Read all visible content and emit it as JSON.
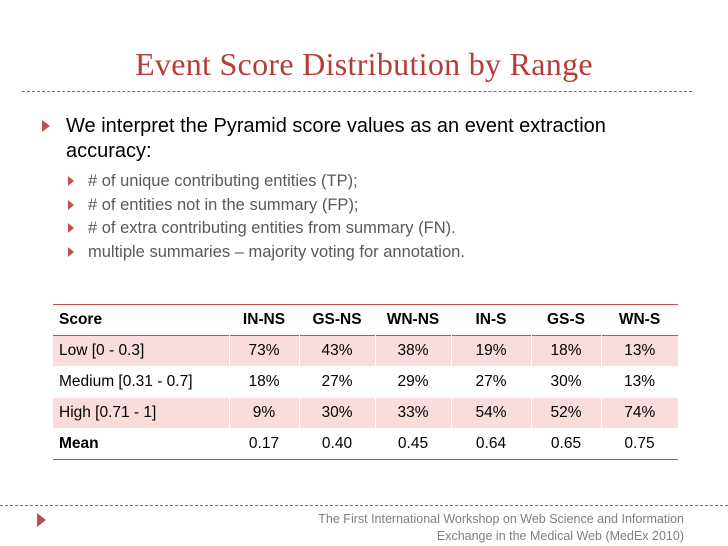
{
  "slide": {
    "title": "Event Score Distribution by Range",
    "main_bullet": "We interpret the Pyramid score values as an event extraction accuracy:",
    "sub_bullets": [
      "# of unique contributing entities (TP);",
      "# of entities not in the summary (FP);",
      "# of extra contributing entities from summary (FN).",
      "multiple summaries – majority voting for annotation."
    ],
    "footer_line1": "The First International Workshop on Web Science and Information",
    "footer_line2": "Exchange in the Medical Web (MedEx  2010)",
    "accent_color": "#c0504d",
    "row_shade_color": "#f9dcdb",
    "bullet_icon": "triangle-right-icon"
  },
  "table": {
    "headers": [
      "Score",
      "IN-NS",
      "GS-NS",
      "WN-NS",
      "IN-S",
      "GS-S",
      "WN-S"
    ],
    "rows": [
      [
        "Low [0 - 0.3]",
        "73%",
        "43%",
        "38%",
        "19%",
        "18%",
        "13%"
      ],
      [
        "Medium [0.31 - 0.7]",
        "18%",
        "27%",
        "29%",
        "27%",
        "30%",
        "13%"
      ],
      [
        "High [0.71 - 1]",
        "9%",
        "30%",
        "33%",
        "54%",
        "52%",
        "74%"
      ],
      [
        "Mean",
        "0.17",
        "0.40",
        "0.45",
        "0.64",
        "0.65",
        "0.75"
      ]
    ]
  }
}
